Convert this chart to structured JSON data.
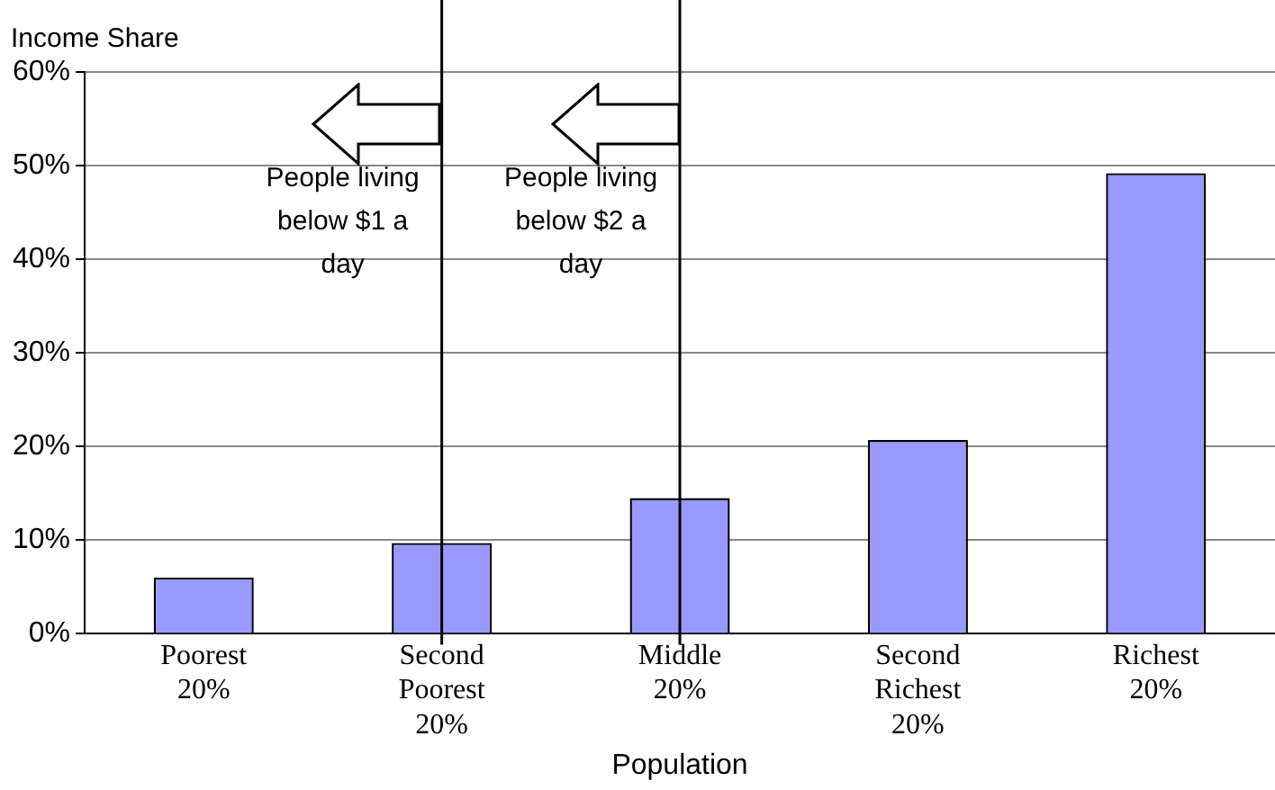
{
  "chart_data": {
    "type": "bar",
    "ylabel": "Income Share",
    "xlabel": "Population",
    "categories": [
      "Poorest 20%",
      "Second Poorest 20%",
      "Middle 20%",
      "Second Richest 20%",
      "Richest 20%"
    ],
    "values": [
      6,
      9.7,
      14.5,
      20.7,
      49.2
    ],
    "color": "#9999ff",
    "ylim": [
      0,
      60
    ],
    "yticks": [
      {
        "value": 0,
        "label": "0%"
      },
      {
        "value": 10,
        "label": "10%"
      },
      {
        "value": 20,
        "label": "20%"
      },
      {
        "value": 30,
        "label": "30%"
      },
      {
        "value": 40,
        "label": "40%"
      },
      {
        "value": 50,
        "label": "50%"
      },
      {
        "value": 60,
        "label": "60%"
      }
    ],
    "grid": "y",
    "legend": false,
    "ref_lines": [
      {
        "axis": "x",
        "value": "Second Poorest 20%",
        "label": "People living below $1 a day",
        "color": "#000000"
      },
      {
        "axis": "x",
        "value": "Middle 20%",
        "label": "People living below $2 a day",
        "color": "#000000"
      }
    ]
  }
}
